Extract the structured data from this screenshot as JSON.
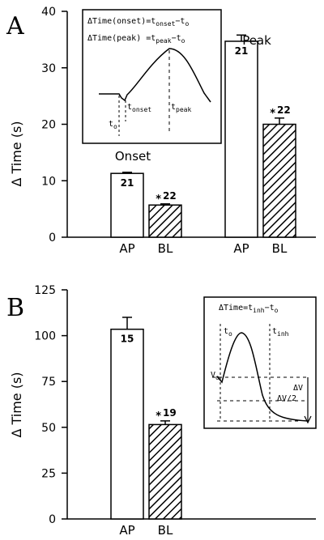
{
  "chart_data": [
    {
      "panel": "A",
      "type": "bar",
      "ylabel": "Δ Time (s)",
      "ylim": [
        0,
        40
      ],
      "yticks": [
        "0",
        "10",
        "20",
        "30",
        "40"
      ],
      "groups": [
        {
          "label": "Onset",
          "categories": [
            "AP",
            "BL"
          ],
          "values": [
            11.3,
            5.7
          ],
          "errors": [
            0.2,
            0.2
          ],
          "n": [
            "21",
            "22"
          ],
          "significant": [
            false,
            true
          ]
        },
        {
          "label": "Peak",
          "categories": [
            "AP",
            "BL"
          ],
          "values": [
            34.7,
            20
          ],
          "errors": [
            1.1,
            1.1
          ],
          "n": [
            "21",
            "22"
          ],
          "significant": [
            false,
            true
          ]
        }
      ],
      "inset": {
        "line1": "ΔTime(onset)=t",
        "line1_sub": "onset",
        "line1_tail": "−t",
        "line1_tail_sub": "o",
        "line2": "ΔTime(peak) =t",
        "line2_sub": "peak",
        "line2_tail": "−t",
        "line2_tail_sub": "o",
        "t0": "t",
        "t0_sub": "o",
        "tonset": "t",
        "tonset_sub": "onset",
        "tpeak": "t",
        "tpeak_sub": "peak"
      }
    },
    {
      "panel": "B",
      "type": "bar",
      "ylabel": "Δ Time (s)",
      "ylim": [
        0,
        125
      ],
      "yticks": [
        "0",
        "25",
        "50",
        "75",
        "100",
        "125"
      ],
      "groups": [
        {
          "label": "",
          "categories": [
            "AP",
            "BL"
          ],
          "values": [
            103.5,
            51.5
          ],
          "errors": [
            6.5,
            2
          ],
          "n": [
            "15",
            "19"
          ],
          "significant": [
            false,
            true
          ]
        }
      ],
      "inset": {
        "formula": "ΔTime=t",
        "formula_sub": "inh",
        "formula_tail": "−t",
        "formula_tail_sub": "o",
        "t0": "t",
        "t0_sub": "o",
        "tinh": "t",
        "tinh_sub": "inh",
        "vo": "V",
        "vo_sub": "o",
        "dv": "ΔV",
        "dv2": "ΔV/2"
      }
    }
  ],
  "colors": {
    "ink": "#000000",
    "background": "#ffffff"
  },
  "significance_marker": "*"
}
